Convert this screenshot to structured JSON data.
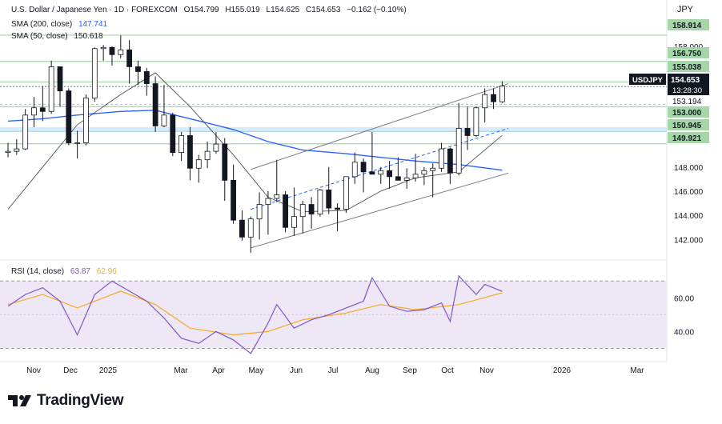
{
  "header": {
    "symbol": "U.S. Dollar / Japanese Yen · 1D · FOREXCOM",
    "open_label": "O",
    "open": "154.799",
    "high_label": "H",
    "high": "155.019",
    "low_label": "L",
    "low": "154.625",
    "close_label": "C",
    "close": "154.653",
    "change": "−0.162 (−0.10%)",
    "sma200_label": "SMA (200, close)",
    "sma200_value": "147.741",
    "sma50_label": "SMA (50, close)",
    "sma50_value": "150.618",
    "rsi_label": "RSI (14, close)",
    "rsi_value": "63.87",
    "rsi_ma_value": "62.96"
  },
  "currency": "JPY",
  "brand": "TradingView",
  "colors": {
    "up": "#131722",
    "down": "#131722",
    "sma200": "#2962ff",
    "sma50": "#131722",
    "rsi": "#7e57c2",
    "rsi_ma": "#f9a825",
    "rsi_band": "#ede7f6",
    "support_zone": "#bbdefb",
    "resistance_line": "#a5d6a7",
    "green_label": "#a5d6a7"
  },
  "chart_data": {
    "type": "candlestick",
    "x_tick_labels": [
      "Nov",
      "Dec",
      "2025",
      "Mar",
      "Apr",
      "May",
      "Jun",
      "Jul",
      "Aug",
      "Sep",
      "Oct",
      "Nov",
      "2026",
      "Mar"
    ],
    "y_tick_labels": [
      "158.000",
      "148.000",
      "146.000",
      "144.000",
      "142.000"
    ],
    "y_range": [
      140.5,
      160.5
    ],
    "price_levels": [
      {
        "value": 158.914,
        "label": "158.914",
        "style": "green"
      },
      {
        "value": 156.75,
        "label": "156.750",
        "style": "green"
      },
      {
        "value": 155.038,
        "label": "155.038",
        "style": "green"
      },
      {
        "value": 154.653,
        "label": "USDJPY",
        "style": "current",
        "price": "154.653",
        "timer": "13:28:30"
      },
      {
        "value": 153.194,
        "label": "153.194",
        "style": "plain"
      },
      {
        "value": 153.0,
        "label": "153.000",
        "style": "green"
      },
      {
        "value": 150.945,
        "label": "150.945",
        "style": "green"
      },
      {
        "value": 149.921,
        "label": "149.921",
        "style": "green"
      }
    ],
    "rsi_tick_labels": [
      "60.00",
      "40.00"
    ],
    "rsi_range": [
      25,
      82
    ],
    "rsi_bands": [
      70,
      30,
      50
    ],
    "channel": {
      "lower": [
        [
          "2025-04-21",
          141.3
        ],
        [
          "2025-11-15",
          147.5
        ]
      ],
      "upper": [
        [
          "2025-04-21",
          147.8
        ],
        [
          "2025-11-15",
          154.9
        ]
      ],
      "mid": [
        [
          "2025-04-21",
          144.5
        ],
        [
          "2025-11-15",
          151.2
        ]
      ]
    },
    "candles_weekly_ohlc": [
      [
        "2024-10-07",
        149.2,
        150.0,
        148.8,
        149.3
      ],
      [
        "2024-10-14",
        149.3,
        150.3,
        149.0,
        149.5
      ],
      [
        "2024-10-21",
        149.5,
        152.8,
        149.4,
        152.3
      ],
      [
        "2024-10-28",
        152.3,
        153.8,
        151.3,
        152.9
      ],
      [
        "2024-11-04",
        152.9,
        154.7,
        151.8,
        152.6
      ],
      [
        "2024-11-11",
        152.6,
        156.8,
        152.4,
        156.3
      ],
      [
        "2024-11-18",
        156.3,
        156.0,
        153.0,
        154.3
      ],
      [
        "2024-11-25",
        154.3,
        154.5,
        149.8,
        150.0
      ],
      [
        "2024-12-02",
        150.0,
        151.0,
        148.7,
        150.0
      ],
      [
        "2024-12-09",
        150.0,
        154.0,
        149.8,
        153.7
      ],
      [
        "2024-12-16",
        153.7,
        157.9,
        153.4,
        157.8
      ],
      [
        "2024-12-23",
        157.8,
        158.1,
        156.8,
        157.9
      ],
      [
        "2024-12-30",
        157.9,
        158.0,
        156.4,
        157.3
      ],
      [
        "2025-01-06",
        157.3,
        158.9,
        157.0,
        157.7
      ],
      [
        "2025-01-13",
        157.7,
        158.5,
        154.9,
        156.3
      ],
      [
        "2025-01-20",
        156.3,
        156.8,
        154.8,
        155.9
      ],
      [
        "2025-01-27",
        155.9,
        156.2,
        153.9,
        154.9
      ],
      [
        "2025-02-03",
        154.9,
        155.5,
        150.9,
        151.4
      ],
      [
        "2025-02-10",
        151.4,
        154.8,
        151.3,
        152.3
      ],
      [
        "2025-02-17",
        152.3,
        152.5,
        148.9,
        149.2
      ],
      [
        "2025-02-24",
        149.2,
        150.9,
        148.5,
        150.6
      ],
      [
        "2025-03-03",
        150.6,
        151.3,
        146.9,
        147.9
      ],
      [
        "2025-03-10",
        147.9,
        149.0,
        146.7,
        148.6
      ],
      [
        "2025-03-17",
        148.6,
        150.1,
        147.9,
        149.3
      ],
      [
        "2025-03-24",
        149.3,
        150.9,
        149.1,
        149.9
      ],
      [
        "2025-03-31",
        149.9,
        150.4,
        145.2,
        146.9
      ],
      [
        "2025-04-07",
        146.9,
        148.2,
        143.3,
        143.6
      ],
      [
        "2025-04-14",
        143.6,
        144.4,
        141.9,
        142.2
      ],
      [
        "2025-04-21",
        142.2,
        143.9,
        140.9,
        143.7
      ],
      [
        "2025-04-28",
        143.7,
        145.9,
        142.0,
        144.9
      ],
      [
        "2025-05-05",
        144.9,
        146.0,
        142.4,
        145.4
      ],
      [
        "2025-05-12",
        145.4,
        148.6,
        145.1,
        145.7
      ],
      [
        "2025-05-19",
        145.7,
        146.0,
        142.6,
        143.0
      ],
      [
        "2025-05-26",
        143.0,
        146.3,
        142.3,
        143.9
      ],
      [
        "2025-06-02",
        143.9,
        145.2,
        142.5,
        144.9
      ],
      [
        "2025-06-09",
        144.9,
        145.5,
        142.9,
        144.1
      ],
      [
        "2025-06-16",
        144.1,
        146.2,
        143.9,
        146.1
      ],
      [
        "2025-06-23",
        146.1,
        148.0,
        144.1,
        144.6
      ],
      [
        "2025-06-30",
        144.6,
        145.0,
        142.7,
        144.5
      ],
      [
        "2025-07-07",
        144.5,
        147.2,
        144.2,
        147.2
      ],
      [
        "2025-07-14",
        147.2,
        149.2,
        146.6,
        148.4
      ],
      [
        "2025-07-21",
        148.4,
        148.7,
        145.9,
        147.6
      ],
      [
        "2025-07-28",
        147.6,
        150.9,
        147.5,
        147.4
      ],
      [
        "2025-08-04",
        147.4,
        148.0,
        146.6,
        147.7
      ],
      [
        "2025-08-11",
        147.7,
        148.5,
        146.2,
        147.2
      ],
      [
        "2025-08-18",
        147.2,
        148.8,
        146.9,
        146.9
      ],
      [
        "2025-08-25",
        146.9,
        147.9,
        146.2,
        147.1
      ],
      [
        "2025-09-01",
        147.1,
        149.1,
        146.8,
        147.4
      ],
      [
        "2025-09-08",
        147.4,
        148.0,
        146.5,
        147.7
      ],
      [
        "2025-09-15",
        147.7,
        148.3,
        145.5,
        147.9
      ],
      [
        "2025-09-22",
        147.9,
        150.0,
        147.6,
        149.5
      ],
      [
        "2025-09-29",
        149.5,
        149.6,
        146.6,
        147.5
      ],
      [
        "2025-10-06",
        147.5,
        153.3,
        147.3,
        151.2
      ],
      [
        "2025-10-13",
        151.2,
        153.0,
        149.4,
        150.6
      ],
      [
        "2025-10-20",
        150.6,
        153.0,
        150.5,
        152.9
      ],
      [
        "2025-10-27",
        152.9,
        154.5,
        151.7,
        154.0
      ],
      [
        "2025-11-03",
        154.0,
        154.5,
        152.8,
        153.4
      ],
      [
        "2025-11-10",
        153.4,
        155.1,
        153.3,
        154.7
      ]
    ],
    "sma200": [
      [
        "2024-10-07",
        151.8
      ],
      [
        "2024-11-04",
        152.0
      ],
      [
        "2024-12-02",
        152.3
      ],
      [
        "2025-01-06",
        152.6
      ],
      [
        "2025-02-03",
        152.7
      ],
      [
        "2025-03-03",
        152.0
      ],
      [
        "2025-04-07",
        151.1
      ],
      [
        "2025-05-05",
        150.1
      ],
      [
        "2025-06-02",
        149.4
      ],
      [
        "2025-07-07",
        149.1
      ],
      [
        "2025-08-04",
        148.8
      ],
      [
        "2025-09-01",
        148.5
      ],
      [
        "2025-10-06",
        148.2
      ],
      [
        "2025-11-10",
        147.741
      ]
    ],
    "sma50": [
      [
        "2024-10-07",
        144.5
      ],
      [
        "2024-11-04",
        148.0
      ],
      [
        "2024-12-02",
        151.5
      ],
      [
        "2025-01-06",
        154.0
      ],
      [
        "2025-02-03",
        155.8
      ],
      [
        "2025-03-03",
        153.0
      ],
      [
        "2025-04-07",
        149.0
      ],
      [
        "2025-05-05",
        145.5
      ],
      [
        "2025-06-02",
        144.3
      ],
      [
        "2025-07-07",
        144.4
      ],
      [
        "2025-08-04",
        146.0
      ],
      [
        "2025-09-01",
        147.1
      ],
      [
        "2025-10-06",
        147.6
      ],
      [
        "2025-11-10",
        150.618
      ]
    ],
    "rsi": [
      [
        "2024-10-07",
        55
      ],
      [
        "2024-10-21",
        62
      ],
      [
        "2024-11-04",
        66
      ],
      [
        "2024-11-18",
        58
      ],
      [
        "2024-12-02",
        38
      ],
      [
        "2024-12-16",
        62
      ],
      [
        "2024-12-30",
        70
      ],
      [
        "2025-01-13",
        64
      ],
      [
        "2025-01-27",
        58
      ],
      [
        "2025-02-10",
        48
      ],
      [
        "2025-02-24",
        36
      ],
      [
        "2025-03-10",
        33
      ],
      [
        "2025-03-24",
        40
      ],
      [
        "2025-04-07",
        35
      ],
      [
        "2025-04-21",
        27
      ],
      [
        "2025-05-05",
        45
      ],
      [
        "2025-05-12",
        56
      ],
      [
        "2025-05-26",
        42
      ],
      [
        "2025-06-09",
        47
      ],
      [
        "2025-06-23",
        50
      ],
      [
        "2025-07-07",
        54
      ],
      [
        "2025-07-21",
        58
      ],
      [
        "2025-07-28",
        72
      ],
      [
        "2025-08-11",
        55
      ],
      [
        "2025-08-25",
        52
      ],
      [
        "2025-09-08",
        53
      ],
      [
        "2025-09-22",
        57
      ],
      [
        "2025-09-29",
        46
      ],
      [
        "2025-10-06",
        73
      ],
      [
        "2025-10-20",
        62
      ],
      [
        "2025-10-27",
        68
      ],
      [
        "2025-11-10",
        63.87
      ]
    ],
    "rsi_ma": [
      [
        "2024-10-07",
        56
      ],
      [
        "2024-11-04",
        62
      ],
      [
        "2024-12-02",
        54
      ],
      [
        "2025-01-06",
        64
      ],
      [
        "2025-02-03",
        56
      ],
      [
        "2025-03-03",
        42
      ],
      [
        "2025-04-07",
        38
      ],
      [
        "2025-05-05",
        40
      ],
      [
        "2025-06-02",
        47
      ],
      [
        "2025-07-07",
        51
      ],
      [
        "2025-08-04",
        56
      ],
      [
        "2025-09-01",
        53
      ],
      [
        "2025-10-06",
        56
      ],
      [
        "2025-11-10",
        62.96
      ]
    ]
  }
}
